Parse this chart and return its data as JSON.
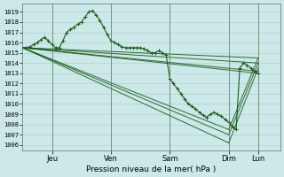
{
  "xlabel": "Pression niveau de la mer( hPa )",
  "bg_color": "#cce8e8",
  "plot_bg_color": "#cce8e8",
  "grid_color": "#aacccc",
  "line_color": "#1a5c1a",
  "ylim": [
    1005.5,
    1019.8
  ],
  "yticks": [
    1006,
    1007,
    1008,
    1009,
    1010,
    1011,
    1012,
    1013,
    1014,
    1015,
    1016,
    1017,
    1018,
    1019
  ],
  "xlim": [
    0,
    210
  ],
  "xtick_positions": [
    24,
    72,
    120,
    168,
    192
  ],
  "xtick_labels": [
    "Jeu",
    "Ven",
    "Sam",
    "Dim",
    "Lun"
  ],
  "vlines": [
    24,
    72,
    120,
    168,
    192
  ],
  "main_x": [
    0,
    3,
    6,
    9,
    12,
    15,
    18,
    21,
    24,
    27,
    30,
    33,
    36,
    39,
    42,
    45,
    48,
    51,
    54,
    57,
    60,
    63,
    66,
    69,
    72,
    75,
    78,
    81,
    84,
    87,
    90,
    93,
    96,
    99,
    102,
    105,
    108,
    111,
    114,
    117,
    120,
    123,
    126,
    129,
    132,
    135,
    138,
    141,
    144,
    147,
    150,
    153,
    156,
    159,
    162,
    165,
    168,
    171,
    174,
    177,
    180,
    183,
    186,
    189,
    192
  ],
  "main_y": [
    1015.5,
    1015.5,
    1015.6,
    1015.8,
    1016.0,
    1016.3,
    1016.5,
    1016.2,
    1015.8,
    1015.5,
    1015.5,
    1016.2,
    1017.0,
    1017.3,
    1017.5,
    1017.8,
    1018.0,
    1018.5,
    1019.0,
    1019.1,
    1018.7,
    1018.2,
    1017.5,
    1016.8,
    1016.2,
    1016.0,
    1015.8,
    1015.6,
    1015.5,
    1015.5,
    1015.5,
    1015.5,
    1015.5,
    1015.4,
    1015.2,
    1015.0,
    1015.0,
    1015.2,
    1015.0,
    1014.8,
    1012.5,
    1012.0,
    1011.5,
    1011.0,
    1010.5,
    1010.0,
    1009.8,
    1009.5,
    1009.2,
    1008.9,
    1008.7,
    1009.0,
    1009.2,
    1009.0,
    1008.8,
    1008.5,
    1008.2,
    1007.8,
    1007.5,
    1013.5,
    1014.0,
    1013.8,
    1013.5,
    1013.2,
    1013.0
  ],
  "straight_lines": [
    {
      "x": [
        0,
        168
      ],
      "y": [
        1015.5,
        1006.2
      ]
    },
    {
      "x": [
        0,
        168
      ],
      "y": [
        1015.5,
        1007.0
      ]
    },
    {
      "x": [
        0,
        168
      ],
      "y": [
        1015.5,
        1007.5
      ]
    },
    {
      "x": [
        0,
        192
      ],
      "y": [
        1015.5,
        1014.0
      ]
    },
    {
      "x": [
        0,
        192
      ],
      "y": [
        1015.5,
        1014.5
      ]
    },
    {
      "x": [
        0,
        192
      ],
      "y": [
        1015.5,
        1013.2
      ]
    },
    {
      "x": [
        0,
        192
      ],
      "y": [
        1015.5,
        1013.0
      ]
    }
  ],
  "extra_lines": [
    {
      "x": [
        168,
        192
      ],
      "y": [
        1006.2,
        1013.5
      ]
    },
    {
      "x": [
        168,
        192
      ],
      "y": [
        1007.0,
        1014.0
      ]
    },
    {
      "x": [
        168,
        192
      ],
      "y": [
        1007.5,
        1014.5
      ]
    }
  ]
}
